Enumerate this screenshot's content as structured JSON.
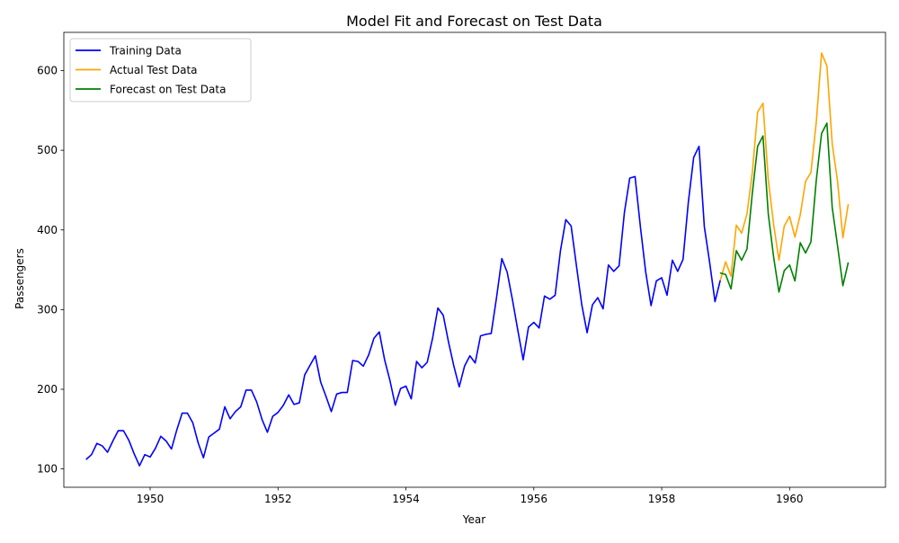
{
  "chart_data": {
    "type": "line",
    "title": "Model Fit and Forecast on Test Data",
    "xlabel": "Year",
    "ylabel": "Passengers",
    "xlim": [
      1948.65,
      1961.5
    ],
    "ylim": [
      77,
      648
    ],
    "x_ticks": [
      1950,
      1952,
      1954,
      1956,
      1958,
      1960
    ],
    "y_ticks": [
      100,
      200,
      300,
      400,
      500,
      600
    ],
    "grid": false,
    "legend_position": "top-left",
    "series": [
      {
        "name": "Training Data",
        "color": "#0000ff",
        "start": 1949.0,
        "step": 0.08333333,
        "values": [
          112,
          118,
          132,
          129,
          121,
          135,
          148,
          148,
          136,
          119,
          104,
          118,
          115,
          126,
          141,
          135,
          125,
          149,
          170,
          170,
          158,
          133,
          114,
          140,
          145,
          150,
          178,
          163,
          172,
          178,
          199,
          199,
          184,
          162,
          146,
          166,
          171,
          180,
          193,
          181,
          183,
          218,
          230,
          242,
          209,
          191,
          172,
          194,
          196,
          196,
          236,
          235,
          229,
          243,
          264,
          272,
          237,
          211,
          180,
          201,
          204,
          188,
          235,
          227,
          234,
          264,
          302,
          293,
          259,
          229,
          203,
          229,
          242,
          233,
          267,
          269,
          270,
          315,
          364,
          347,
          312,
          274,
          237,
          278,
          284,
          277,
          317,
          313,
          318,
          374,
          413,
          405,
          355,
          306,
          271,
          306,
          315,
          301,
          356,
          348,
          355,
          422,
          465,
          467,
          404,
          347,
          305,
          336,
          340,
          318,
          362,
          348,
          363,
          435,
          491,
          505,
          404,
          359,
          310,
          337
        ]
      },
      {
        "name": "Actual Test Data",
        "color": "#ffa500",
        "start": 1958.9167,
        "step": 0.08333333,
        "values": [
          337,
          360,
          342,
          406,
          396,
          420,
          472,
          548,
          559,
          463,
          407,
          362,
          405,
          417,
          391,
          419,
          461,
          472,
          535,
          622,
          606,
          508,
          461,
          390,
          432
        ]
      },
      {
        "name": "Forecast on Test Data",
        "color": "#008000",
        "start": 1958.9167,
        "step": 0.08333333,
        "values": [
          346,
          344,
          326,
          374,
          362,
          376,
          446,
          505,
          518,
          420,
          366,
          322,
          349,
          356,
          336,
          384,
          371,
          385,
          462,
          521,
          534,
          428,
          380,
          330,
          359
        ]
      }
    ]
  }
}
